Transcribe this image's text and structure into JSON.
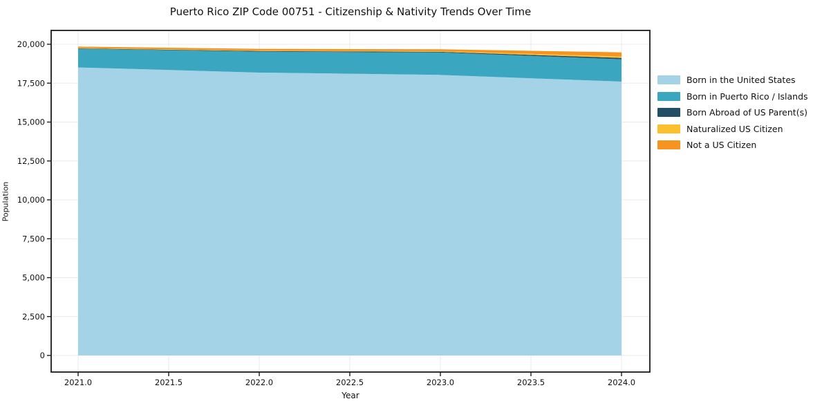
{
  "title": "Puerto Rico ZIP Code 00751 - Citizenship & Nativity Trends Over Time",
  "chart_data": {
    "type": "area",
    "stacked": true,
    "title": "Puerto Rico ZIP Code 00751 - Citizenship & Nativity Trends Over Time",
    "xlabel": "Year",
    "ylabel": "Population",
    "x": [
      2021,
      2022,
      2023,
      2024
    ],
    "xticks": [
      2021.0,
      2021.5,
      2022.0,
      2022.5,
      2023.0,
      2023.5,
      2024.0
    ],
    "yticks": [
      0,
      2500,
      5000,
      7500,
      10000,
      12500,
      15000,
      17500,
      20000
    ],
    "ylim": [
      0,
      20000
    ],
    "xlim": [
      2020.85,
      2024.16
    ],
    "grid": true,
    "legend_position": "right-outside",
    "series": [
      {
        "name": "Born in the United States",
        "color": "#a4d3e8",
        "values": [
          18510,
          18180,
          18030,
          17600
        ]
      },
      {
        "name": "Born in Puerto Rico / Islands",
        "color": "#3aa6c0",
        "values": [
          1200,
          1345,
          1440,
          1435
        ]
      },
      {
        "name": "Born Abroad of US Parent(s)",
        "color": "#234f66",
        "values": [
          25,
          40,
          45,
          90
        ]
      },
      {
        "name": "Naturalized US Citizen",
        "color": "#fcc02e",
        "values": [
          25,
          30,
          40,
          90
        ]
      },
      {
        "name": "Not a US Citizen",
        "color": "#f79420",
        "values": [
          90,
          110,
          120,
          265
        ]
      }
    ],
    "totals": [
      19850,
      19705,
      19675,
      19480
    ],
    "grid_color": "#eaeaea",
    "axis_color": "#1a1a1a"
  }
}
